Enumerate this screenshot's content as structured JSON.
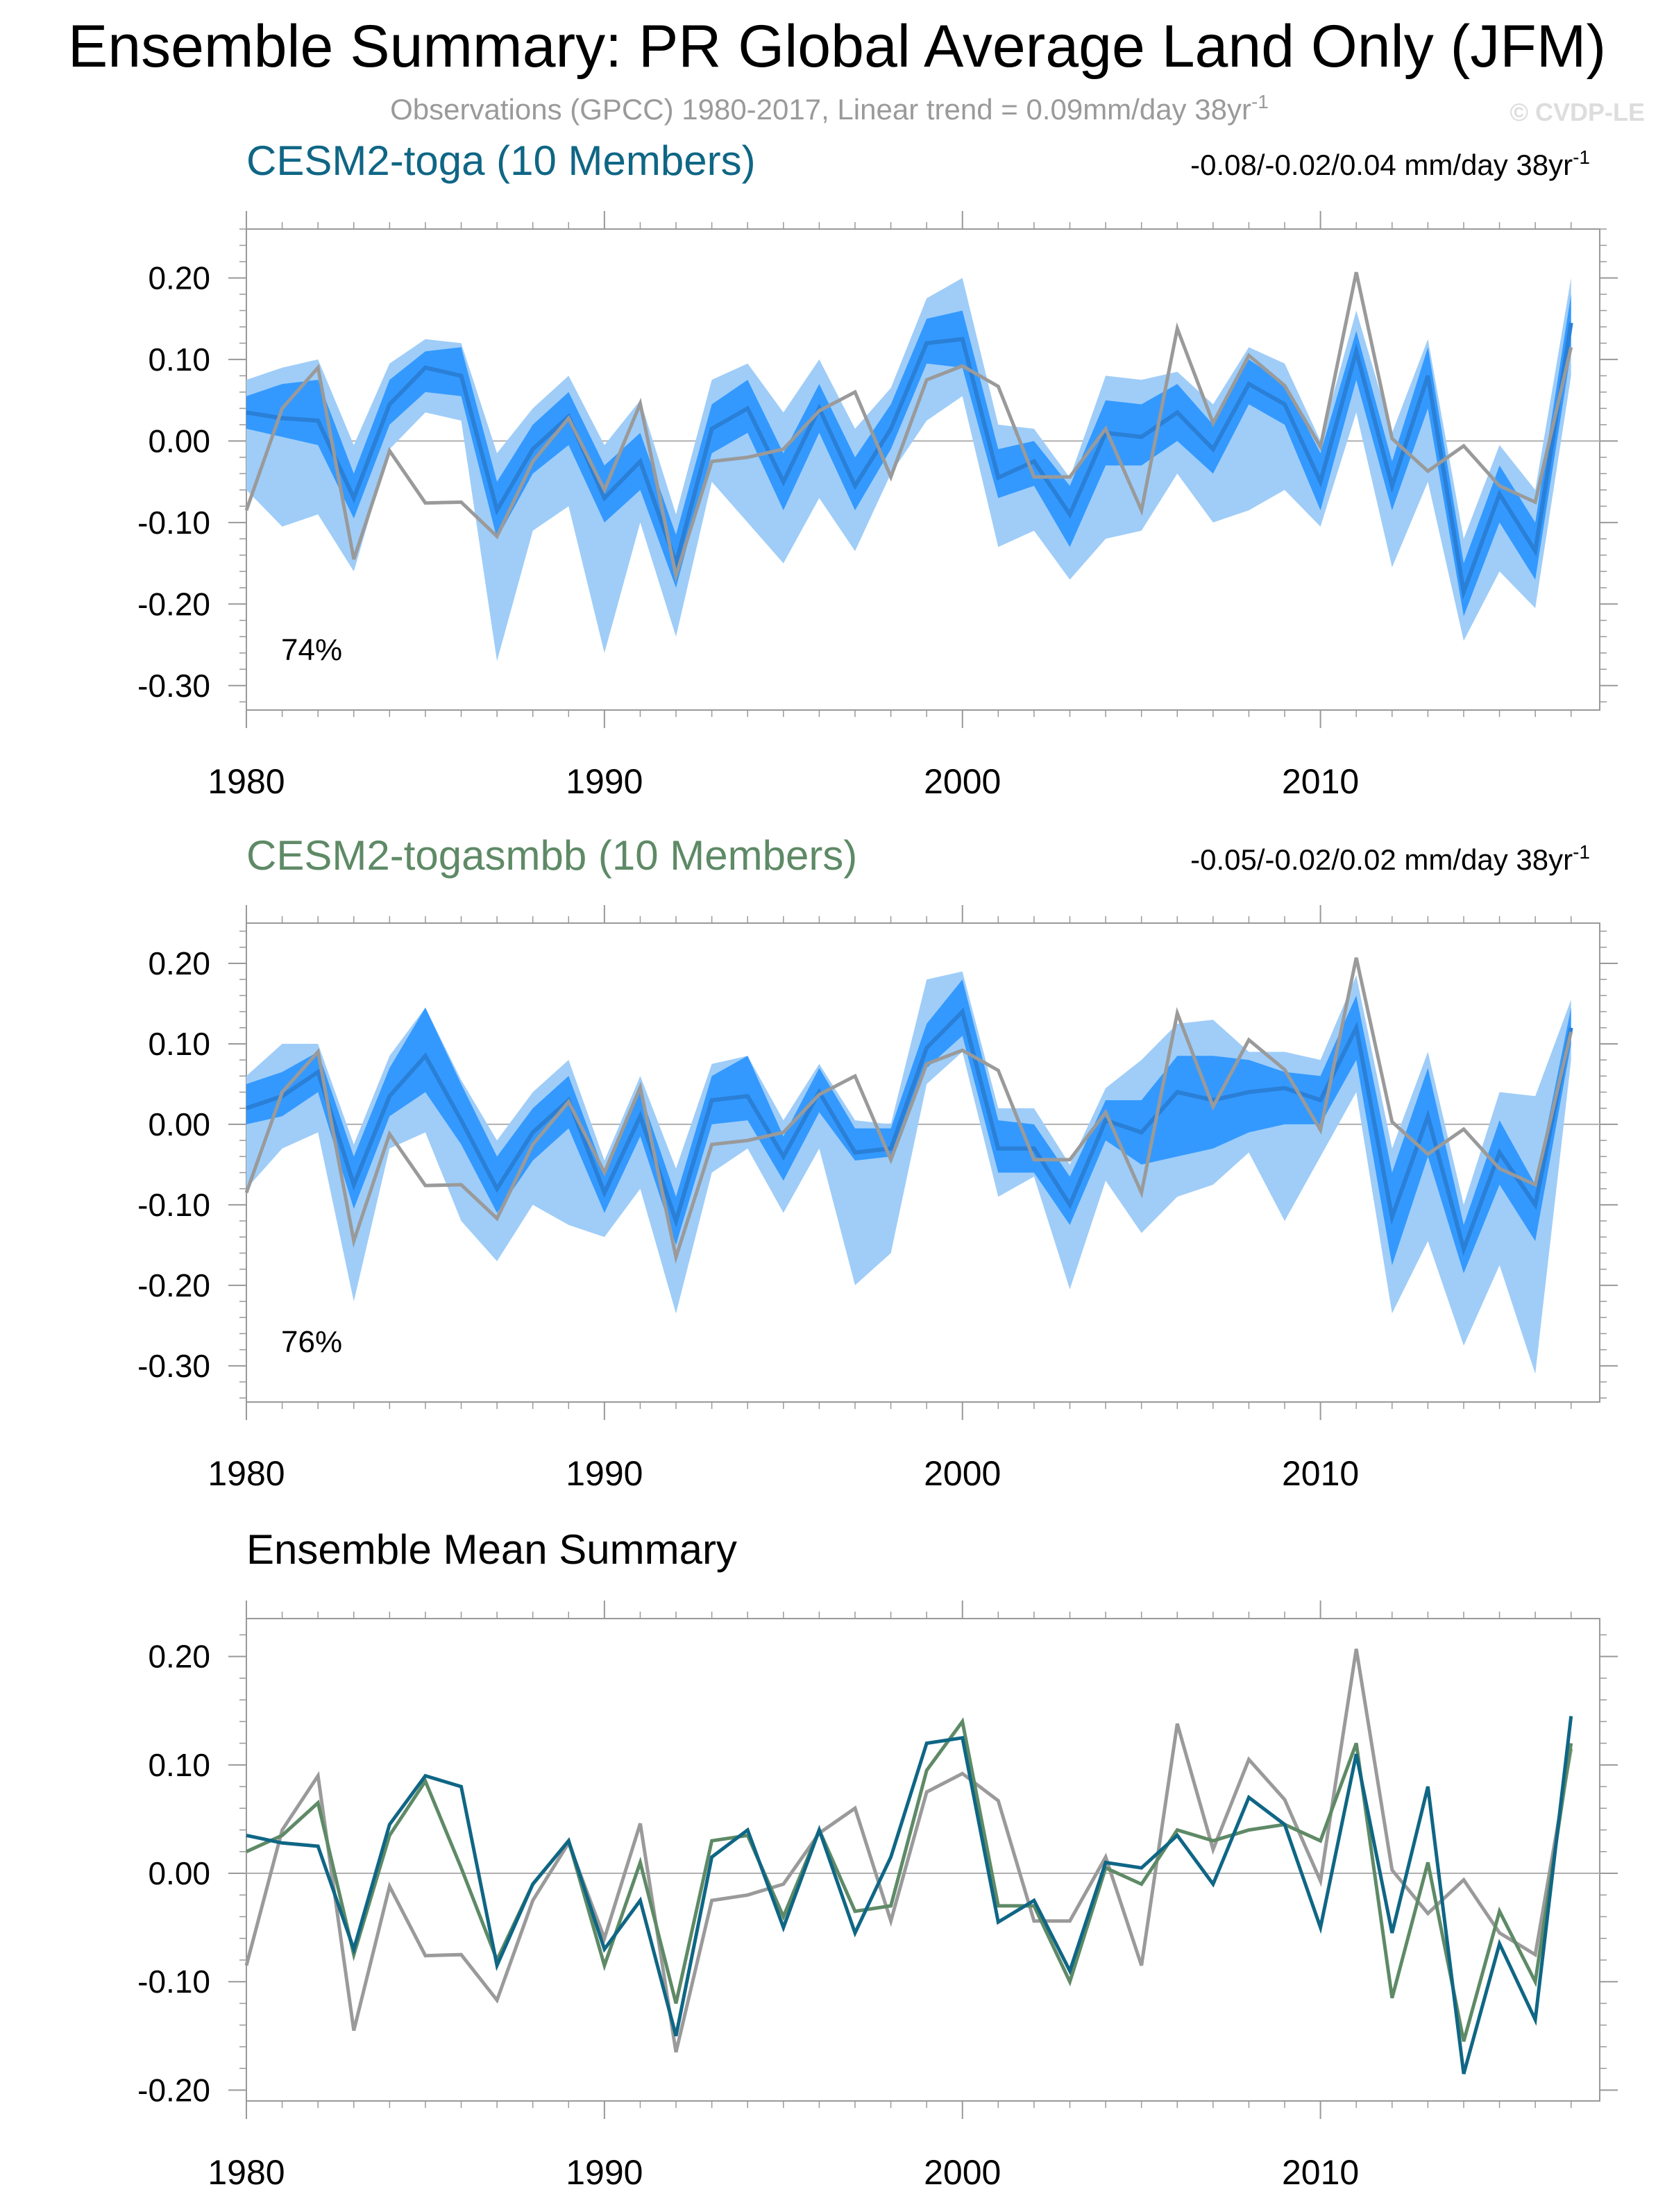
{
  "title": "Ensemble Summary: PR Global Average Land Only (JFM)",
  "subtitle": "Observations (GPCC) 1980-2017, Linear trend = 0.09mm/day 38yr",
  "subtitle_sup": "-1",
  "watermark": "© CVDP-LE",
  "colors": {
    "obs": "#9a9a9a",
    "band_outer": "#9fcdf8",
    "band_inner": "#3399ff",
    "ens_line": "#2a7fd6",
    "toga": "#0f6685",
    "togasmbb": "#5e8a66",
    "zero_line": "#b0b0b0",
    "frame": "#999999",
    "text": "#000000",
    "subtitle": "#9a9a9a"
  },
  "chart_data": [
    {
      "type": "line",
      "panel": "CESM2-toga",
      "title": "CESM2-toga (10 Members)",
      "title_color": "#0f6685",
      "trend_text": "-0.08/-0.02/0.04 mm/day 38yr",
      "trend_sup": "-1",
      "percent_label": "74%",
      "x": [
        1980,
        1981,
        1982,
        1983,
        1984,
        1985,
        1986,
        1987,
        1988,
        1989,
        1990,
        1991,
        1992,
        1993,
        1994,
        1995,
        1996,
        1997,
        1998,
        1999,
        2000,
        2001,
        2002,
        2003,
        2004,
        2005,
        2006,
        2007,
        2008,
        2009,
        2010,
        2011,
        2012,
        2013,
        2014,
        2015,
        2016,
        2017
      ],
      "xticks": [
        1980,
        1990,
        2000,
        2010
      ],
      "xlim": [
        1980,
        2017.8
      ],
      "ylim": [
        -0.33,
        0.26
      ],
      "yticks": [
        -0.3,
        -0.2,
        -0.1,
        0.0,
        0.1,
        0.2
      ],
      "ytick_labels": [
        "-0.30",
        "-0.20",
        "-0.10",
        "0.00",
        "0.10",
        "0.20"
      ],
      "ensemble_mean": [
        0.035,
        0.028,
        0.025,
        -0.07,
        0.045,
        0.09,
        0.08,
        -0.085,
        -0.01,
        0.03,
        -0.07,
        -0.025,
        -0.15,
        0.015,
        0.04,
        -0.05,
        0.04,
        -0.055,
        0.015,
        0.12,
        0.125,
        -0.045,
        -0.025,
        -0.09,
        0.01,
        0.005,
        0.035,
        -0.01,
        0.07,
        0.045,
        -0.05,
        0.11,
        -0.055,
        0.08,
        -0.185,
        -0.065,
        -0.135,
        0.145
      ],
      "band_inner_lower": [
        0.015,
        0.005,
        -0.005,
        -0.095,
        0.02,
        0.06,
        0.055,
        -0.12,
        -0.04,
        -0.005,
        -0.1,
        -0.06,
        -0.18,
        -0.015,
        0.01,
        -0.085,
        0.01,
        -0.085,
        -0.01,
        0.095,
        0.09,
        -0.07,
        -0.055,
        -0.13,
        -0.03,
        -0.03,
        0.0,
        -0.04,
        0.045,
        0.02,
        -0.085,
        0.075,
        -0.085,
        0.04,
        -0.215,
        -0.1,
        -0.17,
        0.11
      ],
      "band_inner_upper": [
        0.055,
        0.07,
        0.075,
        -0.04,
        0.075,
        0.11,
        0.115,
        -0.05,
        0.02,
        0.06,
        -0.03,
        0.01,
        -0.115,
        0.045,
        0.075,
        -0.015,
        0.07,
        -0.02,
        0.045,
        0.15,
        0.16,
        -0.01,
        0.0,
        -0.055,
        0.05,
        0.045,
        0.07,
        0.02,
        0.1,
        0.07,
        -0.015,
        0.135,
        -0.025,
        0.115,
        -0.15,
        -0.03,
        -0.1,
        0.18
      ],
      "band_outer_lower": [
        -0.06,
        -0.105,
        -0.09,
        -0.16,
        -0.01,
        0.035,
        0.025,
        -0.27,
        -0.11,
        -0.08,
        -0.26,
        -0.1,
        -0.24,
        -0.05,
        -0.1,
        -0.15,
        -0.07,
        -0.135,
        -0.04,
        0.025,
        0.055,
        -0.13,
        -0.11,
        -0.17,
        -0.12,
        -0.11,
        -0.04,
        -0.1,
        -0.085,
        -0.06,
        -0.105,
        0.035,
        -0.155,
        -0.05,
        -0.245,
        -0.16,
        -0.205,
        0.08
      ],
      "band_outer_upper": [
        0.075,
        0.09,
        0.1,
        -0.005,
        0.095,
        0.125,
        0.12,
        -0.015,
        0.04,
        0.08,
        -0.005,
        0.05,
        -0.09,
        0.075,
        0.095,
        0.035,
        0.1,
        0.015,
        0.065,
        0.175,
        0.2,
        0.02,
        0.015,
        -0.045,
        0.08,
        0.075,
        0.085,
        0.045,
        0.115,
        0.095,
        0.0,
        0.16,
        0.01,
        0.125,
        -0.12,
        -0.005,
        -0.06,
        0.2
      ],
      "obs": [
        -0.085,
        0.04,
        0.09,
        -0.145,
        -0.012,
        -0.076,
        -0.075,
        -0.117,
        -0.025,
        0.028,
        -0.06,
        0.046,
        -0.165,
        -0.025,
        -0.02,
        -0.01,
        0.037,
        0.06,
        -0.044,
        0.075,
        0.092,
        0.067,
        -0.044,
        -0.044,
        0.015,
        -0.085,
        0.138,
        0.022,
        0.105,
        0.068,
        -0.007,
        0.207,
        0.003,
        -0.037,
        -0.006,
        -0.055,
        -0.075,
        0.115
      ]
    },
    {
      "type": "line",
      "panel": "CESM2-togasmbb",
      "title": "CESM2-togasmbb (10 Members)",
      "title_color": "#5e8a66",
      "trend_text": "-0.05/-0.02/0.02 mm/day 38yr",
      "trend_sup": "-1",
      "percent_label": "76%",
      "x": [
        1980,
        1981,
        1982,
        1983,
        1984,
        1985,
        1986,
        1987,
        1988,
        1989,
        1990,
        1991,
        1992,
        1993,
        1994,
        1995,
        1996,
        1997,
        1998,
        1999,
        2000,
        2001,
        2002,
        2003,
        2004,
        2005,
        2006,
        2007,
        2008,
        2009,
        2010,
        2011,
        2012,
        2013,
        2014,
        2015,
        2016,
        2017
      ],
      "xticks": [
        1980,
        1990,
        2000,
        2010
      ],
      "xlim": [
        1980,
        2017.8
      ],
      "ylim": [
        -0.345,
        0.25
      ],
      "yticks": [
        -0.3,
        -0.2,
        -0.1,
        0.0,
        0.1,
        0.2
      ],
      "ytick_labels": [
        "-0.30",
        "-0.20",
        "-0.10",
        "0.00",
        "0.10",
        "0.20"
      ],
      "ensemble_mean": [
        0.02,
        0.035,
        0.065,
        -0.075,
        0.035,
        0.085,
        0.005,
        -0.08,
        -0.01,
        0.03,
        -0.085,
        0.01,
        -0.12,
        0.03,
        0.035,
        -0.04,
        0.04,
        -0.035,
        -0.03,
        0.095,
        0.14,
        -0.03,
        -0.03,
        -0.1,
        0.005,
        -0.01,
        0.04,
        0.03,
        0.04,
        0.045,
        0.03,
        0.12,
        -0.115,
        0.01,
        -0.155,
        -0.035,
        -0.1,
        0.12
      ],
      "band_inner_lower": [
        0.0,
        0.01,
        0.04,
        -0.105,
        0.01,
        0.04,
        -0.025,
        -0.11,
        -0.045,
        -0.005,
        -0.11,
        -0.015,
        -0.15,
        0.0,
        0.005,
        -0.07,
        0.015,
        -0.045,
        -0.04,
        0.07,
        0.11,
        -0.06,
        -0.06,
        -0.125,
        -0.02,
        -0.05,
        -0.04,
        -0.03,
        -0.01,
        0.0,
        0.0,
        0.08,
        -0.175,
        -0.04,
        -0.185,
        -0.075,
        -0.145,
        0.1
      ],
      "band_inner_upper": [
        0.05,
        0.065,
        0.09,
        -0.04,
        0.07,
        0.145,
        0.05,
        -0.04,
        0.02,
        0.06,
        -0.06,
        0.04,
        -0.09,
        0.06,
        0.085,
        -0.015,
        0.07,
        -0.005,
        -0.005,
        0.125,
        0.18,
        0.005,
        0.0,
        -0.065,
        0.03,
        0.03,
        0.085,
        0.085,
        0.08,
        0.065,
        0.06,
        0.16,
        -0.06,
        0.07,
        -0.125,
        0.005,
        -0.075,
        0.145
      ],
      "band_outer_lower": [
        -0.08,
        -0.03,
        -0.01,
        -0.22,
        -0.03,
        -0.01,
        -0.12,
        -0.17,
        -0.1,
        -0.125,
        -0.14,
        -0.08,
        -0.235,
        -0.06,
        -0.03,
        -0.11,
        -0.03,
        -0.2,
        -0.16,
        0.05,
        0.09,
        -0.09,
        -0.065,
        -0.205,
        -0.07,
        -0.135,
        -0.09,
        -0.075,
        -0.035,
        -0.12,
        -0.04,
        0.04,
        -0.235,
        -0.145,
        -0.275,
        -0.175,
        -0.31,
        0.08
      ],
      "band_outer_upper": [
        0.06,
        0.1,
        0.1,
        -0.025,
        0.085,
        0.145,
        0.055,
        -0.02,
        0.04,
        0.08,
        -0.045,
        0.06,
        -0.055,
        0.075,
        0.085,
        0.005,
        0.075,
        0.005,
        0.0,
        0.18,
        0.19,
        0.02,
        0.02,
        -0.05,
        0.045,
        0.08,
        0.125,
        0.13,
        0.09,
        0.09,
        0.08,
        0.185,
        -0.03,
        0.09,
        -0.1,
        0.04,
        0.035,
        0.155
      ],
      "obs": [
        -0.085,
        0.04,
        0.09,
        -0.145,
        -0.012,
        -0.076,
        -0.075,
        -0.117,
        -0.025,
        0.028,
        -0.06,
        0.046,
        -0.165,
        -0.025,
        -0.02,
        -0.01,
        0.037,
        0.06,
        -0.044,
        0.075,
        0.092,
        0.067,
        -0.044,
        -0.044,
        0.015,
        -0.085,
        0.138,
        0.022,
        0.105,
        0.068,
        -0.007,
        0.207,
        0.003,
        -0.037,
        -0.006,
        -0.055,
        -0.075,
        0.115
      ]
    },
    {
      "type": "line",
      "panel": "Ensemble Mean Summary",
      "title": "Ensemble Mean Summary",
      "title_color": "#000000",
      "x": [
        1980,
        1981,
        1982,
        1983,
        1984,
        1985,
        1986,
        1987,
        1988,
        1989,
        1990,
        1991,
        1992,
        1993,
        1994,
        1995,
        1996,
        1997,
        1998,
        1999,
        2000,
        2001,
        2002,
        2003,
        2004,
        2005,
        2006,
        2007,
        2008,
        2009,
        2010,
        2011,
        2012,
        2013,
        2014,
        2015,
        2016,
        2017
      ],
      "xticks": [
        1980,
        1990,
        2000,
        2010
      ],
      "xlim": [
        1980,
        2017.8
      ],
      "ylim": [
        -0.21,
        0.235
      ],
      "yticks": [
        -0.2,
        -0.1,
        0.0,
        0.1,
        0.2
      ],
      "ytick_labels": [
        "-0.20",
        "-0.10",
        "0.00",
        "0.10",
        "0.20"
      ],
      "series": [
        {
          "name": "Observations (GPCC)",
          "color": "#9a9a9a",
          "values": [
            -0.085,
            0.04,
            0.09,
            -0.145,
            -0.012,
            -0.076,
            -0.075,
            -0.117,
            -0.025,
            0.028,
            -0.06,
            0.046,
            -0.165,
            -0.025,
            -0.02,
            -0.01,
            0.037,
            0.06,
            -0.044,
            0.075,
            0.092,
            0.067,
            -0.044,
            -0.044,
            0.015,
            -0.085,
            0.138,
            0.022,
            0.105,
            0.068,
            -0.007,
            0.207,
            0.003,
            -0.037,
            -0.006,
            -0.055,
            -0.075,
            0.115
          ]
        },
        {
          "name": "CESM2-togasmbb",
          "color": "#5e8a66",
          "values": [
            0.02,
            0.035,
            0.065,
            -0.075,
            0.035,
            0.085,
            0.005,
            -0.08,
            -0.01,
            0.03,
            -0.085,
            0.01,
            -0.12,
            0.03,
            0.035,
            -0.04,
            0.04,
            -0.035,
            -0.03,
            0.095,
            0.14,
            -0.03,
            -0.03,
            -0.1,
            0.005,
            -0.01,
            0.04,
            0.03,
            0.04,
            0.045,
            0.03,
            0.12,
            -0.115,
            0.01,
            -0.155,
            -0.035,
            -0.1,
            0.12
          ]
        },
        {
          "name": "CESM2-toga",
          "color": "#0f6685",
          "values": [
            0.035,
            0.028,
            0.025,
            -0.07,
            0.045,
            0.09,
            0.08,
            -0.085,
            -0.01,
            0.03,
            -0.07,
            -0.025,
            -0.15,
            0.015,
            0.04,
            -0.05,
            0.04,
            -0.055,
            0.015,
            0.12,
            0.125,
            -0.045,
            -0.025,
            -0.09,
            0.01,
            0.005,
            0.035,
            -0.01,
            0.07,
            0.045,
            -0.05,
            0.11,
            -0.055,
            0.08,
            -0.185,
            -0.065,
            -0.135,
            0.145
          ]
        }
      ]
    }
  ]
}
